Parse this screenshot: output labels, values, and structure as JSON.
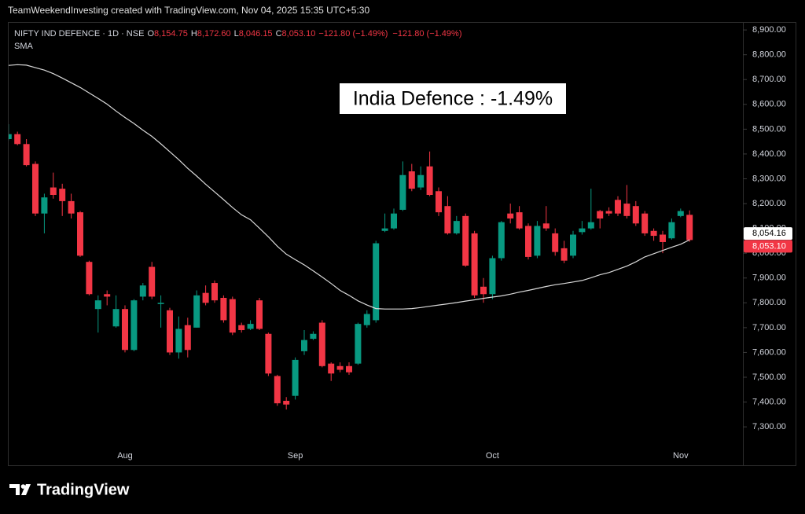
{
  "header": {
    "text": "TeamWeekendInvesting created with TradingView.com, Nov 04, 2025 15:35 UTC+5:30"
  },
  "chart_data": {
    "type": "candlestick",
    "symbol": "NIFTY IND DEFENCE · 1D · NSE",
    "ohlc_legend": [
      {
        "key": "O",
        "value": "8,154.75"
      },
      {
        "key": "H",
        "value": "8,172.60"
      },
      {
        "key": "L",
        "value": "8,046.15"
      },
      {
        "key": "C",
        "value": "8,053.10"
      }
    ],
    "change": [
      "−121.80 (−1.49%)",
      "−121.80 (−1.49%)"
    ],
    "annotation": "India Defence : -1.49%",
    "categories": [
      null,
      null,
      null,
      null,
      null,
      null,
      null,
      null,
      null,
      null,
      null,
      null,
      null,
      "Aug",
      null,
      null,
      null,
      null,
      null,
      null,
      null,
      null,
      null,
      null,
      null,
      null,
      null,
      null,
      null,
      null,
      null,
      null,
      "Sep",
      null,
      null,
      null,
      null,
      null,
      null,
      null,
      null,
      null,
      null,
      null,
      null,
      null,
      null,
      null,
      null,
      null,
      null,
      null,
      null,
      null,
      "Oct",
      null,
      null,
      null,
      null,
      null,
      null,
      null,
      null,
      null,
      null,
      null,
      null,
      null,
      null,
      null,
      null,
      null,
      null,
      null,
      null,
      "Nov",
      null
    ],
    "open": [
      8460,
      8480,
      8440,
      8360,
      8160,
      8265,
      8260,
      8210,
      8165,
      7965,
      7775,
      7835,
      7705,
      7775,
      7610,
      7825,
      7945,
      7795,
      7770,
      7600,
      7710,
      7700,
      7840,
      7880,
      7820,
      7815,
      7710,
      7695,
      7810,
      7675,
      7505,
      7405,
      7425,
      7605,
      7655,
      7720,
      7555,
      7545,
      7545,
      7555,
      7710,
      7730,
      8090,
      8100,
      8175,
      8330,
      8265,
      8350,
      8250,
      8190,
      8080,
      8150,
      8080,
      7865,
      7835,
      7980,
      8160,
      8165,
      8110,
      7990,
      8120,
      8080,
      8020,
      7990,
      8085,
      8100,
      8170,
      8170,
      8215,
      8200,
      8190,
      8160,
      8090,
      8075,
      8060,
      8150,
      8154.75
    ],
    "high": [
      8520,
      8490,
      8460,
      8370,
      8240,
      8325,
      8280,
      8240,
      8170,
      7970,
      7830,
      7850,
      7830,
      7790,
      7815,
      7880,
      7965,
      7830,
      7780,
      7745,
      7740,
      7850,
      7870,
      7890,
      7830,
      7825,
      7720,
      7730,
      7820,
      7680,
      7510,
      7420,
      7580,
      7690,
      7685,
      7730,
      7560,
      7560,
      7560,
      7720,
      7770,
      8050,
      8160,
      8180,
      8370,
      8360,
      8350,
      8410,
      8265,
      8230,
      8150,
      8160,
      8090,
      7900,
      7990,
      8130,
      8200,
      8190,
      8120,
      8130,
      8190,
      8100,
      8050,
      8090,
      8130,
      8260,
      8175,
      8185,
      8230,
      8275,
      8210,
      8170,
      8100,
      8090,
      8140,
      8180,
      8172.6
    ],
    "low": [
      8455,
      8435,
      8350,
      8150,
      8080,
      8220,
      8150,
      8140,
      7985,
      7830,
      7680,
      7790,
      7700,
      7600,
      7605,
      7810,
      7815,
      7700,
      7590,
      7575,
      7580,
      7700,
      7790,
      7800,
      7720,
      7670,
      7680,
      7690,
      7690,
      7505,
      7385,
      7370,
      7410,
      7590,
      7650,
      7540,
      7485,
      7520,
      7510,
      7550,
      7700,
      7720,
      8085,
      8095,
      8170,
      8250,
      8255,
      8230,
      8150,
      8075,
      8075,
      7945,
      7820,
      7800,
      7815,
      7970,
      8120,
      8095,
      7975,
      7980,
      8090,
      7990,
      7960,
      7980,
      8075,
      8095,
      8100,
      8150,
      8150,
      8140,
      8110,
      8070,
      8050,
      8000,
      8055,
      8145,
      8046.15
    ],
    "close": [
      8480,
      8440,
      8355,
      8160,
      8225,
      8235,
      8210,
      8160,
      7990,
      7835,
      7810,
      7825,
      7775,
      7610,
      7810,
      7870,
      7825,
      7800,
      7600,
      7695,
      7610,
      7830,
      7800,
      7810,
      7730,
      7680,
      7690,
      7715,
      7695,
      7515,
      7395,
      7390,
      7570,
      7650,
      7675,
      7545,
      7515,
      7530,
      7520,
      7715,
      7755,
      8040,
      8100,
      8160,
      8315,
      8260,
      8315,
      8235,
      8165,
      8080,
      8130,
      7950,
      7830,
      7835,
      7980,
      8125,
      8140,
      8100,
      7985,
      8110,
      8100,
      8005,
      7970,
      8075,
      8100,
      8125,
      8140,
      8160,
      8160,
      8150,
      8120,
      8080,
      8070,
      8045,
      8125,
      8170,
      8053.1
    ],
    "up_color": "#089981",
    "down_color": "#f23645",
    "sma": {
      "name": "SMA",
      "color": "#d9d9d9",
      "values": [
        8757,
        8760,
        8758,
        8748,
        8738,
        8724,
        8706,
        8687,
        8668,
        8646,
        8624,
        8601,
        8573,
        8547,
        8523,
        8496,
        8471,
        8441,
        8409,
        8377,
        8342,
        8311,
        8278,
        8247,
        8216,
        8184,
        8155,
        8135,
        8101,
        8066,
        8028,
        7996,
        7974,
        7953,
        7929,
        7904,
        7878,
        7850,
        7830,
        7808,
        7791,
        7777,
        7775,
        7775,
        7775,
        7777,
        7781,
        7786,
        7791,
        7796,
        7801,
        7807,
        7812,
        7818,
        7823,
        7828,
        7835,
        7843,
        7850,
        7858,
        7866,
        7873,
        7878,
        7884,
        7890,
        7901,
        7913,
        7922,
        7935,
        7948,
        7965,
        7985,
        7998,
        8011,
        8024,
        8036,
        8054.16
      ]
    },
    "price_labels": [
      {
        "value": 8054.16,
        "label": "8,054.16"
      },
      {
        "value": 8053.1,
        "label": "8,053.10"
      }
    ],
    "ylim": [
      7142,
      8932
    ],
    "yticks": [
      {
        "value": 7300,
        "label": "7,300.00"
      },
      {
        "value": 7400,
        "label": "7,400.00"
      },
      {
        "value": 7500,
        "label": "7,500.00"
      },
      {
        "value": 7600,
        "label": "7,600.00"
      },
      {
        "value": 7700,
        "label": "7,700.00"
      },
      {
        "value": 7800,
        "label": "7,800.00"
      },
      {
        "value": 7900,
        "label": "7,900.00"
      },
      {
        "value": 8000,
        "label": "8,000.00"
      },
      {
        "value": 8100,
        "label": "8,100.00"
      },
      {
        "value": 8200,
        "label": "8,200.00"
      },
      {
        "value": 8300,
        "label": "8,300.00"
      },
      {
        "value": 8400,
        "label": "8,400.00"
      },
      {
        "value": 8500,
        "label": "8,500.00"
      },
      {
        "value": 8600,
        "label": "8,600.00"
      },
      {
        "value": 8700,
        "label": "8,700.00"
      },
      {
        "value": 8800,
        "label": "8,800.00"
      },
      {
        "value": 8900,
        "label": "8,900.00"
      }
    ],
    "grid": false
  },
  "footer": {
    "logo": "TradingView"
  }
}
